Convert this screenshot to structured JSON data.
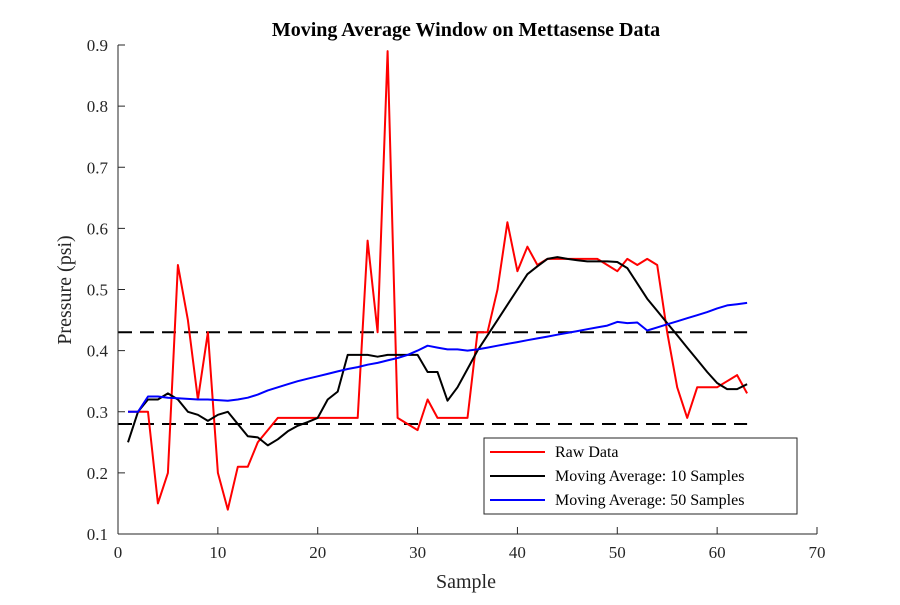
{
  "chart_data": {
    "type": "line",
    "title": "Moving Average Window on Mettasense Data",
    "xlabel": "Sample",
    "ylabel": "Pressure (psi)",
    "xlim": [
      0,
      70
    ],
    "ylim": [
      0.1,
      0.9
    ],
    "xticks": [
      0,
      10,
      20,
      30,
      40,
      50,
      60,
      70
    ],
    "yticks": [
      0.1,
      0.2,
      0.3,
      0.4,
      0.5,
      0.6,
      0.7,
      0.8,
      0.9
    ],
    "xtick_labels": [
      "0",
      "10",
      "20",
      "30",
      "40",
      "50",
      "60",
      "70"
    ],
    "ytick_labels": [
      "0.1",
      "0.2",
      "0.3",
      "0.4",
      "0.5",
      "0.6",
      "0.7",
      "0.8",
      "0.9"
    ],
    "grid": false,
    "legend_position": "bottom-right",
    "reference_lines": [
      {
        "y": 0.43,
        "style": "dashed",
        "color": "#000000",
        "x_range": [
          0,
          63
        ]
      },
      {
        "y": 0.28,
        "style": "dashed",
        "color": "#000000",
        "x_range": [
          0,
          63
        ]
      }
    ],
    "series": [
      {
        "name": "Raw Data",
        "color": "#ff0000",
        "x": [
          1,
          2,
          3,
          4,
          5,
          6,
          7,
          8,
          9,
          10,
          11,
          12,
          13,
          14,
          15,
          16,
          17,
          18,
          19,
          20,
          21,
          22,
          23,
          24,
          25,
          26,
          27,
          28,
          29,
          30,
          31,
          32,
          33,
          34,
          35,
          36,
          37,
          38,
          39,
          40,
          41,
          42,
          43,
          44,
          45,
          46,
          47,
          48,
          49,
          50,
          51,
          52,
          53,
          54,
          55,
          56,
          57,
          58,
          59,
          60,
          61,
          62,
          63
        ],
        "y": [
          0.3,
          0.3,
          0.3,
          0.15,
          0.2,
          0.54,
          0.45,
          0.32,
          0.43,
          0.2,
          0.14,
          0.21,
          0.21,
          0.25,
          0.27,
          0.29,
          0.29,
          0.29,
          0.29,
          0.29,
          0.29,
          0.29,
          0.29,
          0.29,
          0.58,
          0.43,
          0.89,
          0.29,
          0.28,
          0.27,
          0.32,
          0.29,
          0.29,
          0.29,
          0.29,
          0.43,
          0.43,
          0.5,
          0.61,
          0.53,
          0.57,
          0.54,
          0.55,
          0.55,
          0.55,
          0.55,
          0.55,
          0.55,
          0.54,
          0.53,
          0.55,
          0.54,
          0.55,
          0.54,
          0.43,
          0.34,
          0.29,
          0.34,
          0.34,
          0.34,
          0.35,
          0.36,
          0.33
        ]
      },
      {
        "name": "Moving Average: 10 Samples",
        "color": "#000000",
        "x": [
          1,
          2,
          3,
          4,
          5,
          6,
          7,
          8,
          9,
          10,
          11,
          12,
          13,
          14,
          15,
          16,
          17,
          18,
          19,
          20,
          21,
          22,
          23,
          24,
          25,
          26,
          27,
          28,
          29,
          30,
          31,
          32,
          33,
          34,
          35,
          36,
          37,
          38,
          39,
          40,
          41,
          42,
          43,
          44,
          45,
          46,
          47,
          48,
          49,
          50,
          51,
          52,
          53,
          54,
          55,
          56,
          57,
          58,
          59,
          60,
          61,
          62,
          63
        ],
        "y": [
          0.25,
          0.3,
          0.32,
          0.32,
          0.33,
          0.32,
          0.3,
          0.295,
          0.285,
          0.295,
          0.3,
          0.28,
          0.26,
          0.258,
          0.245,
          0.255,
          0.268,
          0.277,
          0.283,
          0.29,
          0.32,
          0.333,
          0.393,
          0.393,
          0.393,
          0.39,
          0.393,
          0.393,
          0.393,
          0.393,
          0.365,
          0.365,
          0.318,
          0.34,
          0.37,
          0.4,
          0.425,
          0.45,
          0.475,
          0.5,
          0.525,
          0.538,
          0.55,
          0.553,
          0.55,
          0.548,
          0.546,
          0.546,
          0.546,
          0.545,
          0.535,
          0.51,
          0.485,
          0.465,
          0.445,
          0.425,
          0.405,
          0.385,
          0.365,
          0.347,
          0.337,
          0.337,
          0.345
        ]
      },
      {
        "name": "Moving Average: 50 Samples",
        "color": "#0000ff",
        "x": [
          1,
          2,
          3,
          4,
          5,
          6,
          7,
          8,
          9,
          10,
          11,
          12,
          13,
          14,
          15,
          16,
          17,
          18,
          19,
          20,
          21,
          22,
          23,
          24,
          25,
          26,
          27,
          28,
          29,
          30,
          31,
          32,
          33,
          34,
          35,
          36,
          37,
          38,
          39,
          40,
          41,
          42,
          43,
          44,
          45,
          46,
          47,
          48,
          49,
          50,
          51,
          52,
          53,
          54,
          55,
          56,
          57,
          58,
          59,
          60,
          61,
          62,
          63
        ],
        "y": [
          0.3,
          0.3,
          0.325,
          0.325,
          0.323,
          0.322,
          0.321,
          0.32,
          0.32,
          0.319,
          0.318,
          0.32,
          0.323,
          0.328,
          0.335,
          0.34,
          0.345,
          0.35,
          0.354,
          0.358,
          0.362,
          0.366,
          0.37,
          0.373,
          0.377,
          0.38,
          0.384,
          0.388,
          0.393,
          0.4,
          0.408,
          0.405,
          0.402,
          0.402,
          0.4,
          0.402,
          0.405,
          0.408,
          0.411,
          0.414,
          0.417,
          0.42,
          0.423,
          0.426,
          0.429,
          0.432,
          0.435,
          0.438,
          0.441,
          0.447,
          0.445,
          0.446,
          0.433,
          0.438,
          0.443,
          0.448,
          0.453,
          0.458,
          0.463,
          0.469,
          0.474,
          0.476,
          0.478
        ]
      }
    ]
  }
}
